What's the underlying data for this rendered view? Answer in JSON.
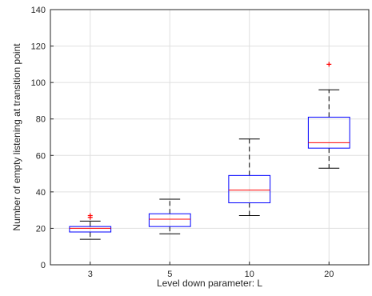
{
  "chart_data": {
    "type": "boxplot",
    "title": "",
    "xlabel": "Level down parameter: L",
    "ylabel": "Number of empty listening at transition point",
    "categories": [
      "3",
      "5",
      "10",
      "20"
    ],
    "ylim": [
      0,
      140
    ],
    "yticks": [
      0,
      20,
      40,
      60,
      80,
      100,
      120,
      140
    ],
    "grid": true,
    "boxes": [
      {
        "category": "3",
        "whisker_low": 14,
        "q1": 18,
        "median": 20,
        "q3": 21,
        "whisker_high": 24,
        "outliers": [
          26,
          27
        ]
      },
      {
        "category": "5",
        "whisker_low": 17,
        "q1": 21,
        "median": 25,
        "q3": 28,
        "whisker_high": 36,
        "outliers": []
      },
      {
        "category": "10",
        "whisker_low": 27,
        "q1": 34,
        "median": 41,
        "q3": 49,
        "whisker_high": 69,
        "outliers": []
      },
      {
        "category": "20",
        "whisker_low": 53,
        "q1": 64,
        "median": 67,
        "q3": 81,
        "whisker_high": 96,
        "outliers": [
          110
        ]
      }
    ],
    "colors": {
      "box": "#0000ff",
      "median": "#ff0000",
      "whisker": "#000000",
      "outlier": "#ff0000",
      "grid": "#dfdfdf",
      "axis": "#262626"
    }
  }
}
